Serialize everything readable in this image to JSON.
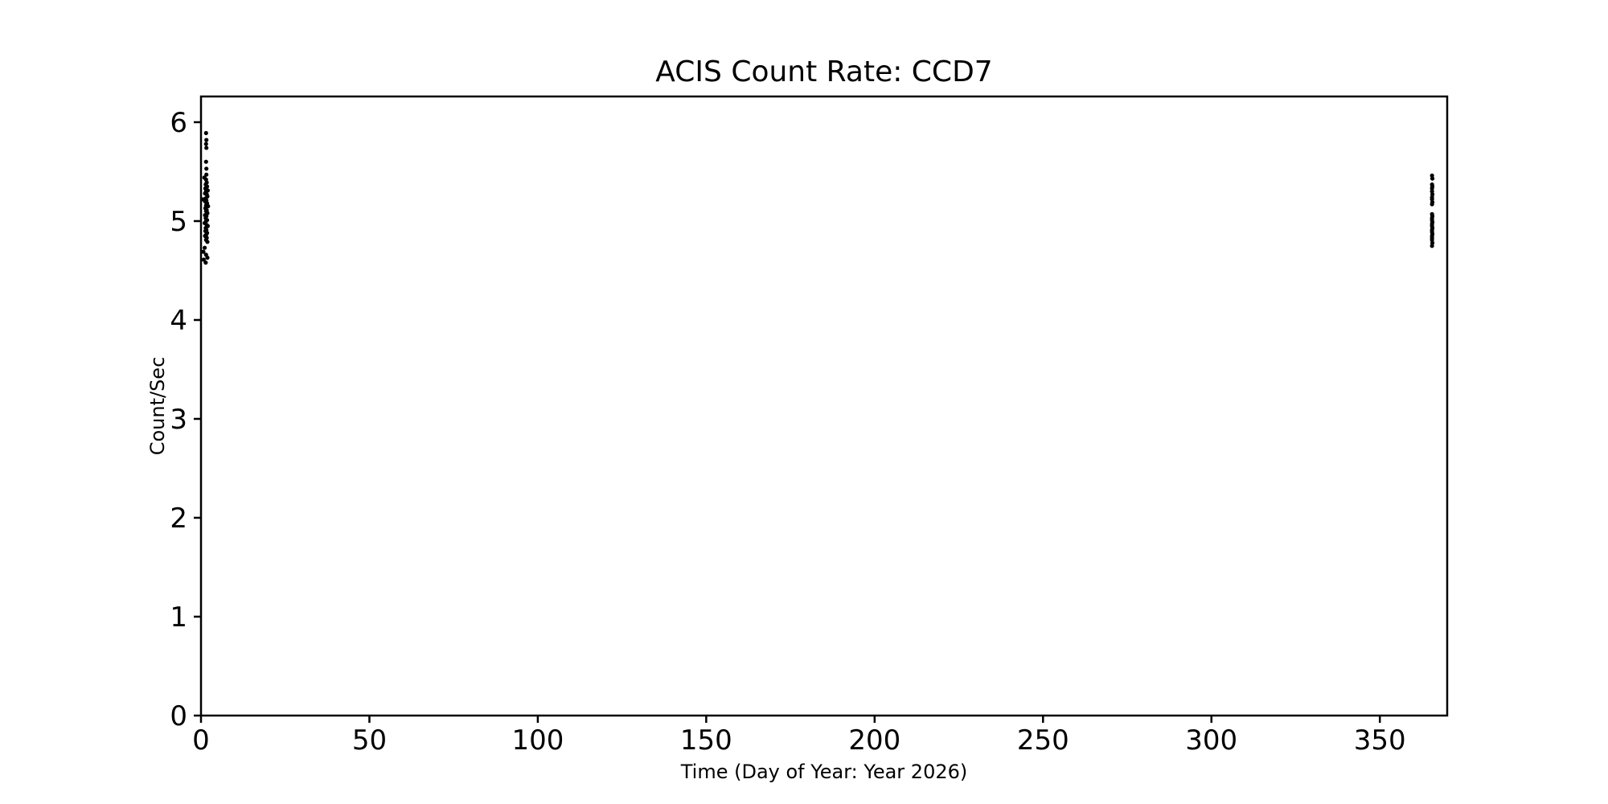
{
  "figure": {
    "background_color": "#ffffff",
    "axis_color": "#000000",
    "point_color": "#000000"
  },
  "chart_data": {
    "type": "scatter",
    "title": "ACIS Count Rate: CCD7",
    "xlabel": "Time (Day of Year: Year 2026)",
    "ylabel": "Count/Sec",
    "xlim": [
      0,
      370
    ],
    "ylim": [
      0,
      6.26
    ],
    "x_ticks": [
      0,
      50,
      100,
      150,
      200,
      250,
      300,
      350
    ],
    "y_ticks": [
      0,
      1,
      2,
      3,
      4,
      5,
      6
    ],
    "grid": false,
    "legend": "none",
    "marker": "point",
    "series": [
      {
        "name": "ccd7-count-rate-start-of-year",
        "color": "#000000",
        "points": [
          [
            1.5,
            5.89
          ],
          [
            1.6,
            5.82
          ],
          [
            1.5,
            5.78
          ],
          [
            1.6,
            5.74
          ],
          [
            1.5,
            5.6
          ],
          [
            1.6,
            5.53
          ],
          [
            1.6,
            5.47
          ],
          [
            1.0,
            5.44
          ],
          [
            1.5,
            5.42
          ],
          [
            1.7,
            5.39
          ],
          [
            1.4,
            5.37
          ],
          [
            1.8,
            5.35
          ],
          [
            1.3,
            5.33
          ],
          [
            2.0,
            5.31
          ],
          [
            1.5,
            5.3
          ],
          [
            1.2,
            5.28
          ],
          [
            1.7,
            5.27
          ],
          [
            1.9,
            5.25
          ],
          [
            1.4,
            5.23
          ],
          [
            0.6,
            5.22
          ],
          [
            1.6,
            5.21
          ],
          [
            1.2,
            5.2
          ],
          [
            1.8,
            5.18
          ],
          [
            1.5,
            5.16
          ],
          [
            2.1,
            5.15
          ],
          [
            1.3,
            5.13
          ],
          [
            1.7,
            5.11
          ],
          [
            1.5,
            5.1
          ],
          [
            1.9,
            5.08
          ],
          [
            1.2,
            5.06
          ],
          [
            1.6,
            5.05
          ],
          [
            1.4,
            5.03
          ],
          [
            1.8,
            5.01
          ],
          [
            1.5,
            5.0
          ],
          [
            1.1,
            4.98
          ],
          [
            1.7,
            4.96
          ],
          [
            2.0,
            4.95
          ],
          [
            1.4,
            4.93
          ],
          [
            1.6,
            4.91
          ],
          [
            1.3,
            4.9
          ],
          [
            1.8,
            4.88
          ],
          [
            1.5,
            4.86
          ],
          [
            1.2,
            4.85
          ],
          [
            1.7,
            4.83
          ],
          [
            1.5,
            4.81
          ],
          [
            1.9,
            4.79
          ],
          [
            1.1,
            4.73
          ],
          [
            0.7,
            4.69
          ],
          [
            1.5,
            4.66
          ],
          [
            1.9,
            4.63
          ],
          [
            0.8,
            4.61
          ],
          [
            1.4,
            4.58
          ]
        ]
      },
      {
        "name": "ccd7-count-rate-end-of-year",
        "color": "#000000",
        "points": [
          [
            365.5,
            5.46
          ],
          [
            365.6,
            5.43
          ],
          [
            365.5,
            5.37
          ],
          [
            365.6,
            5.35
          ],
          [
            365.5,
            5.33
          ],
          [
            365.5,
            5.3
          ],
          [
            365.6,
            5.27
          ],
          [
            365.5,
            5.24
          ],
          [
            365.5,
            5.22
          ],
          [
            365.6,
            5.19
          ],
          [
            365.5,
            5.17
          ],
          [
            365.5,
            5.07
          ],
          [
            365.6,
            5.05
          ],
          [
            365.5,
            5.03
          ],
          [
            365.5,
            5.01
          ],
          [
            365.6,
            4.99
          ],
          [
            365.5,
            4.97
          ],
          [
            365.5,
            4.95
          ],
          [
            365.6,
            4.93
          ],
          [
            365.5,
            4.91
          ],
          [
            365.5,
            4.89
          ],
          [
            365.6,
            4.87
          ],
          [
            365.5,
            4.85
          ],
          [
            365.5,
            4.83
          ],
          [
            365.5,
            4.81
          ],
          [
            365.6,
            4.78
          ],
          [
            365.5,
            4.75
          ]
        ]
      }
    ]
  }
}
